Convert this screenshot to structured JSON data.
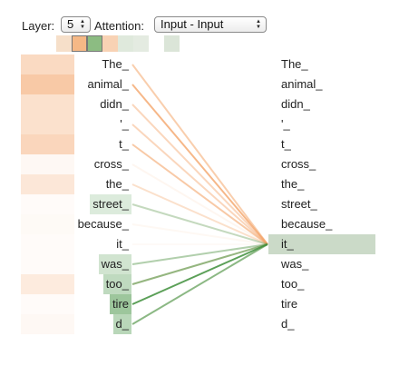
{
  "controls": {
    "layer_label": "Layer:",
    "layer_value": "5",
    "attention_label": "Attention:",
    "attention_value": "Input - Input"
  },
  "head_colors": [
    "#f6dfc9",
    "#f5b886",
    "#8cbc82",
    "#f8d2b4",
    "#dfe9dc",
    "#e4ebe1",
    "#ffffff",
    "#dbe5d8"
  ],
  "selected_heads": [
    1,
    2
  ],
  "tokens": [
    "The_",
    "animal_",
    "didn_",
    "'_",
    "t_",
    "cross_",
    "the_",
    "street_",
    "because_",
    "it_",
    "was_",
    "too_",
    "tire",
    "d_"
  ],
  "query_index": 9,
  "attention": {
    "orange": [
      0.55,
      0.8,
      0.45,
      0.45,
      0.6,
      0.1,
      0.35,
      0.05,
      0.08,
      0.05,
      0.05,
      0.3,
      0.05,
      0.1
    ],
    "green": [
      0.0,
      0.0,
      0.0,
      0.0,
      0.0,
      0.0,
      0.0,
      0.3,
      0.0,
      0.0,
      0.4,
      0.55,
      0.85,
      0.6
    ]
  },
  "colors": {
    "orange": "#f4a56a",
    "green": "#3e8f3c",
    "query_highlight": "#cbdac8"
  }
}
